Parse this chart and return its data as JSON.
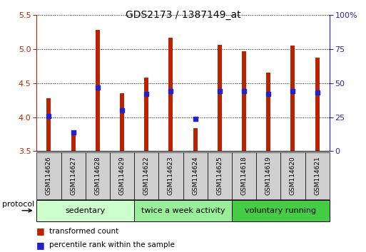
{
  "title": "GDS2173 / 1387149_at",
  "samples": [
    "GSM114626",
    "GSM114627",
    "GSM114628",
    "GSM114629",
    "GSM114622",
    "GSM114623",
    "GSM114624",
    "GSM114625",
    "GSM114618",
    "GSM114619",
    "GSM114620",
    "GSM114621"
  ],
  "transformed_count": [
    4.28,
    3.77,
    5.28,
    4.35,
    4.58,
    5.17,
    3.84,
    5.06,
    4.97,
    4.65,
    5.05,
    4.87
  ],
  "percentile_rank": [
    26,
    14,
    47,
    30,
    42,
    44,
    24,
    44,
    44,
    42,
    44,
    43
  ],
  "ylim_left": [
    3.5,
    5.5
  ],
  "ylim_right": [
    0,
    100
  ],
  "yticks_left": [
    3.5,
    4.0,
    4.5,
    5.0,
    5.5
  ],
  "yticks_right": [
    0,
    25,
    50,
    75,
    100
  ],
  "bar_color": "#bb2200",
  "percentile_color": "#2222cc",
  "groups": [
    {
      "label": "sedentary",
      "start": 0,
      "end": 3,
      "color": "#ccffcc"
    },
    {
      "label": "twice a week activity",
      "start": 4,
      "end": 7,
      "color": "#99ee99"
    },
    {
      "label": "voluntary running",
      "start": 8,
      "end": 11,
      "color": "#44cc44"
    }
  ],
  "protocol_label": "protocol",
  "legend_items": [
    {
      "label": "transformed count",
      "color": "#bb2200"
    },
    {
      "label": "percentile rank within the sample",
      "color": "#2222cc"
    }
  ],
  "title_fontsize": 10,
  "tick_fontsize": 8,
  "bar_width": 0.18,
  "base_value": 3.5,
  "sample_box_color": "#d0d0d0",
  "spine_color": "#000000",
  "grid_color": "#000000"
}
